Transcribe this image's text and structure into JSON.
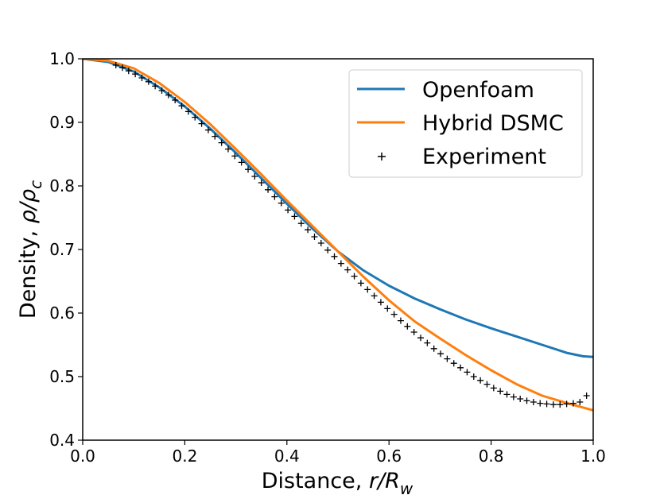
{
  "chart_data": {
    "type": "line",
    "title": "",
    "xlabel": {
      "text": "Distance, ",
      "var": "r/R",
      "sub": "w"
    },
    "ylabel": {
      "text": "Density, ",
      "var": "ρ/ρ",
      "sub": "c"
    },
    "xlim": [
      0.0,
      1.0
    ],
    "ylim": [
      0.4,
      1.0
    ],
    "xticks": [
      0.0,
      0.2,
      0.4,
      0.6,
      0.8,
      1.0
    ],
    "yticks": [
      0.4,
      0.5,
      0.6,
      0.7,
      0.8,
      0.9,
      1.0
    ],
    "xtick_labels": [
      "0.0",
      "0.2",
      "0.4",
      "0.6",
      "0.8",
      "1.0"
    ],
    "ytick_labels": [
      "0.4",
      "0.5",
      "0.6",
      "0.7",
      "0.8",
      "0.9",
      "1.0"
    ],
    "grid": false,
    "legend_position": "top-right",
    "series": [
      {
        "name": "Openfoam",
        "kind": "line",
        "color": "#1f77b4",
        "x": [
          0.0,
          0.05,
          0.1,
          0.15,
          0.2,
          0.25,
          0.3,
          0.35,
          0.4,
          0.45,
          0.5,
          0.55,
          0.6,
          0.65,
          0.7,
          0.75,
          0.8,
          0.85,
          0.9,
          0.95,
          0.98,
          1.0
        ],
        "y": [
          1.0,
          0.995,
          0.98,
          0.955,
          0.925,
          0.89,
          0.852,
          0.812,
          0.772,
          0.733,
          0.697,
          0.667,
          0.643,
          0.623,
          0.606,
          0.59,
          0.576,
          0.563,
          0.55,
          0.537,
          0.532,
          0.531
        ]
      },
      {
        "name": "Hybrid DSMC",
        "kind": "line",
        "color": "#ff7f0e",
        "x": [
          0.0,
          0.05,
          0.1,
          0.15,
          0.2,
          0.25,
          0.3,
          0.35,
          0.4,
          0.45,
          0.5,
          0.55,
          0.6,
          0.65,
          0.7,
          0.75,
          0.8,
          0.85,
          0.9,
          0.95,
          1.0
        ],
        "y": [
          1.0,
          0.997,
          0.985,
          0.962,
          0.932,
          0.897,
          0.858,
          0.818,
          0.777,
          0.737,
          0.697,
          0.657,
          0.62,
          0.587,
          0.56,
          0.534,
          0.51,
          0.488,
          0.47,
          0.458,
          0.447
        ]
      },
      {
        "name": "Experiment",
        "kind": "scatter",
        "marker": "+",
        "color": "#000000",
        "x": [
          0.065,
          0.078,
          0.09,
          0.103,
          0.116,
          0.129,
          0.142,
          0.155,
          0.168,
          0.181,
          0.194,
          0.207,
          0.22,
          0.233,
          0.246,
          0.259,
          0.272,
          0.285,
          0.298,
          0.311,
          0.324,
          0.337,
          0.35,
          0.363,
          0.376,
          0.389,
          0.402,
          0.415,
          0.428,
          0.441,
          0.454,
          0.467,
          0.48,
          0.493,
          0.506,
          0.519,
          0.532,
          0.545,
          0.558,
          0.571,
          0.584,
          0.597,
          0.61,
          0.623,
          0.636,
          0.649,
          0.662,
          0.675,
          0.688,
          0.701,
          0.714,
          0.727,
          0.74,
          0.753,
          0.766,
          0.779,
          0.792,
          0.805,
          0.818,
          0.831,
          0.844,
          0.857,
          0.87,
          0.883,
          0.896,
          0.909,
          0.922,
          0.935,
          0.948,
          0.961,
          0.974,
          0.987
        ],
        "y": [
          0.99,
          0.986,
          0.981,
          0.976,
          0.97,
          0.964,
          0.957,
          0.95,
          0.943,
          0.935,
          0.926,
          0.917,
          0.908,
          0.898,
          0.888,
          0.878,
          0.868,
          0.858,
          0.847,
          0.837,
          0.826,
          0.815,
          0.805,
          0.794,
          0.783,
          0.773,
          0.762,
          0.752,
          0.741,
          0.731,
          0.72,
          0.71,
          0.699,
          0.689,
          0.678,
          0.668,
          0.658,
          0.647,
          0.637,
          0.627,
          0.617,
          0.607,
          0.598,
          0.588,
          0.579,
          0.57,
          0.561,
          0.553,
          0.544,
          0.536,
          0.528,
          0.521,
          0.514,
          0.507,
          0.5,
          0.494,
          0.488,
          0.482,
          0.477,
          0.472,
          0.468,
          0.465,
          0.462,
          0.46,
          0.458,
          0.457,
          0.456,
          0.456,
          0.457,
          0.458,
          0.46,
          0.47
        ]
      }
    ]
  }
}
